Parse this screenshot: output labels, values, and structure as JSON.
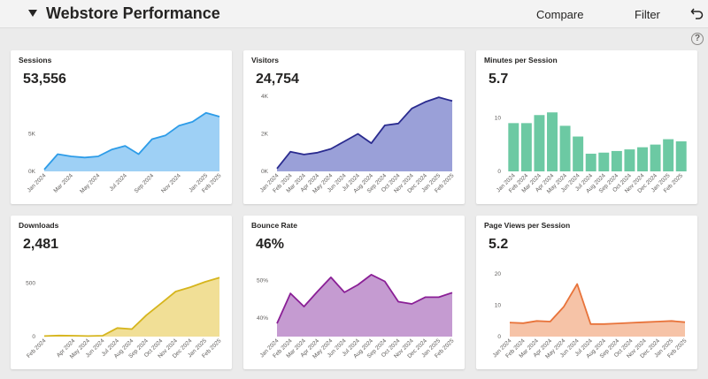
{
  "header": {
    "title": "Webstore Performance",
    "compare_label": "Compare",
    "filter_label": "Filter",
    "caret_icon": "caret-down-icon",
    "undo_icon": "undo-icon"
  },
  "help_label": "?",
  "cards": [
    {
      "title": "Sessions",
      "value": "53,556",
      "chart_data": {
        "type": "area",
        "color": "#9ed0f5",
        "stroke": "#2d9ce8",
        "x": [
          "Jan 2024",
          "Feb 2024",
          "Mar 2024",
          "Apr 2024",
          "May 2024",
          "Jun 2024",
          "Jul 2024",
          "Aug 2024",
          "Sep 2024",
          "Oct 2024",
          "Nov 2024",
          "Dec 2024",
          "Jan 2025",
          "Feb 2025"
        ],
        "labels": [
          "Jan 2024",
          "Mar 2024",
          "May 2024",
          "Jul 2024",
          "Sep 2024",
          "Nov 2024",
          "Jan 2025",
          "Feb 2025"
        ],
        "values": [
          250,
          2300,
          2000,
          1850,
          2000,
          2900,
          3400,
          2300,
          4300,
          4800,
          6100,
          6600,
          7800,
          7300
        ],
        "ylim": [
          0,
          10000
        ],
        "yticks": [
          0,
          5000
        ],
        "ytick_labels": [
          "0K",
          "5K"
        ]
      }
    },
    {
      "title": "Visitors",
      "value": "24,754",
      "chart_data": {
        "type": "area",
        "color": "#9aa0d8",
        "stroke": "#2a2b8f",
        "x": [
          "Jan 2024",
          "Feb 2024",
          "Mar 2024",
          "Apr 2024",
          "May 2024",
          "Jun 2024",
          "Jul 2024",
          "Aug 2024",
          "Sep 2024",
          "Oct 2024",
          "Nov 2024",
          "Dec 2024",
          "Jan 2025",
          "Feb 2025"
        ],
        "labels": [
          "Jan 2024",
          "Feb 2024",
          "Mar 2024",
          "Apr 2024",
          "May 2024",
          "Jun 2024",
          "Jul 2024",
          "Aug 2024",
          "Sep 2024",
          "Oct 2024",
          "Nov 2024",
          "Dec 2024",
          "Jan 2025",
          "Feb 2025"
        ],
        "values": [
          150,
          1050,
          900,
          1000,
          1200,
          1600,
          2000,
          1500,
          2450,
          2550,
          3350,
          3700,
          3950,
          3750
        ],
        "ylim": [
          0,
          4000
        ],
        "yticks": [
          0,
          2000,
          4000
        ],
        "ytick_labels": [
          "0K",
          "2K",
          "4K"
        ]
      }
    },
    {
      "title": "Minutes per Session",
      "value": "5.7",
      "chart_data": {
        "type": "bar",
        "color": "#6cc9a3",
        "x": [
          "Jan 2024",
          "Feb 2024",
          "Mar 2024",
          "Apr 2024",
          "May 2024",
          "Jun 2024",
          "Jul 2024",
          "Aug 2024",
          "Sep 2024",
          "Oct 2024",
          "Nov 2024",
          "Dec 2024",
          "Jan 2025",
          "Feb 2025"
        ],
        "labels": [
          "Jan 2024",
          "Feb 2024",
          "Mar 2024",
          "Apr 2024",
          "May 2024",
          "Jun 2024",
          "Jul 2024",
          "Aug 2024",
          "Sep 2024",
          "Oct 2024",
          "Nov 2024",
          "Dec 2024",
          "Jan 2025",
          "Feb 2025"
        ],
        "values": [
          9.0,
          9.0,
          10.5,
          11.0,
          8.5,
          6.5,
          3.3,
          3.5,
          3.8,
          4.1,
          4.5,
          5.0,
          6.0,
          5.6
        ],
        "ylim": [
          0,
          14
        ],
        "yticks": [
          0,
          10
        ],
        "ytick_labels": [
          "0",
          "10"
        ]
      }
    },
    {
      "title": "Downloads",
      "value": "2,481",
      "chart_data": {
        "type": "area",
        "color": "#f1df96",
        "stroke": "#d6b51d",
        "x": [
          "Feb 2024",
          "Mar 2024",
          "Apr 2024",
          "May 2024",
          "Jun 2024",
          "Jul 2024",
          "Aug 2024",
          "Sep 2024",
          "Oct 2024",
          "Nov 2024",
          "Dec 2024",
          "Jan 2025",
          "Feb 2025"
        ],
        "labels": [
          "Feb 2024",
          "Apr 2024",
          "May 2024",
          "Jun 2024",
          "Jul 2024",
          "Aug 2024",
          "Sep 2024",
          "Oct 2024",
          "Nov 2024",
          "Dec 2024",
          "Jan 2025",
          "Feb 2025"
        ],
        "values": [
          5,
          10,
          8,
          5,
          8,
          80,
          70,
          200,
          310,
          420,
          460,
          510,
          550
        ],
        "ylim": [
          0,
          700
        ],
        "yticks": [
          0,
          500
        ],
        "ytick_labels": [
          "0",
          "500"
        ]
      }
    },
    {
      "title": "Bounce Rate",
      "value": "46%",
      "chart_data": {
        "type": "area",
        "color": "#c59bd1",
        "stroke": "#8a1f96",
        "x": [
          "Jan 2024",
          "Feb 2024",
          "Mar 2024",
          "Apr 2024",
          "May 2024",
          "Jun 2024",
          "Jul 2024",
          "Aug 2024",
          "Sep 2024",
          "Oct 2024",
          "Nov 2024",
          "Dec 2024",
          "Jan 2025",
          "Feb 2025"
        ],
        "labels": [
          "Jan 2024",
          "Feb 2024",
          "Mar 2024",
          "Apr 2024",
          "May 2024",
          "Jun 2024",
          "Jul 2024",
          "Aug 2024",
          "Sep 2024",
          "Oct 2024",
          "Nov 2024",
          "Dec 2024",
          "Jan 2025",
          "Feb 2025"
        ],
        "values": [
          38.5,
          46.5,
          43.0,
          47.0,
          50.8,
          46.8,
          48.8,
          51.5,
          49.7,
          44.3,
          43.7,
          45.5,
          45.5,
          46.7
        ],
        "ylim": [
          35,
          55
        ],
        "yticks": [
          40,
          50
        ],
        "ytick_labels": [
          "40%",
          "50%"
        ]
      }
    },
    {
      "title": "Page Views per Session",
      "value": "5.2",
      "chart_data": {
        "type": "area",
        "color": "#f6c3a7",
        "stroke": "#e8733a",
        "x": [
          "Jan 2024",
          "Feb 2024",
          "Mar 2024",
          "Apr 2024",
          "May 2024",
          "Jun 2024",
          "Jul 2024",
          "Aug 2024",
          "Sep 2024",
          "Oct 2024",
          "Nov 2024",
          "Dec 2024",
          "Jan 2025",
          "Feb 2025"
        ],
        "labels": [
          "Jan 2024",
          "Feb 2024",
          "Mar 2024",
          "Apr 2024",
          "May 2024",
          "Jun 2024",
          "Jul 2024",
          "Aug 2024",
          "Sep 2024",
          "Oct 2024",
          "Nov 2024",
          "Dec 2024",
          "Jan 2025",
          "Feb 2025"
        ],
        "values": [
          4.5,
          4.3,
          5.0,
          4.8,
          9.5,
          16.8,
          4.0,
          4.0,
          4.2,
          4.4,
          4.6,
          4.8,
          5.0,
          4.6
        ],
        "ylim": [
          0,
          24
        ],
        "yticks": [
          0,
          10,
          20
        ],
        "ytick_labels": [
          "0",
          "10",
          "20"
        ]
      }
    }
  ]
}
